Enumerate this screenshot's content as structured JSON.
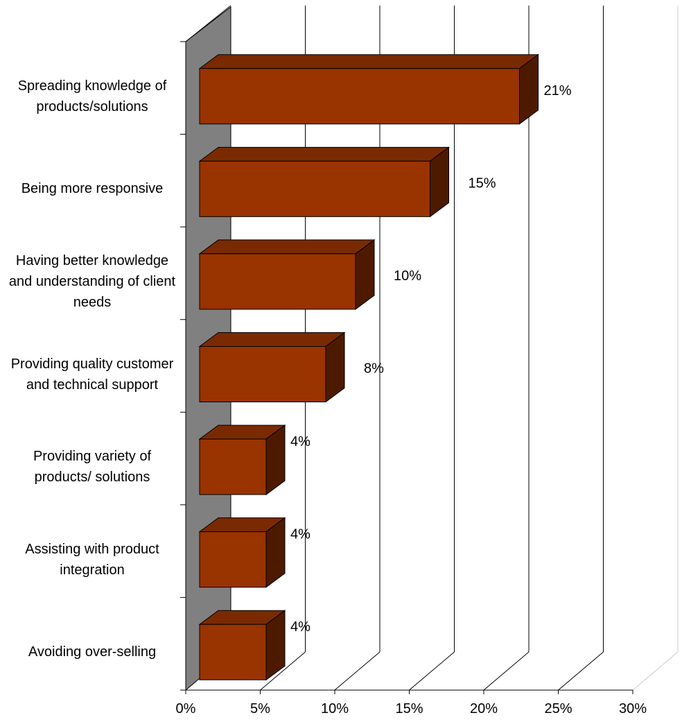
{
  "chart_data": {
    "type": "bar",
    "orientation": "horizontal",
    "three_d": true,
    "title": "",
    "xlabel": "",
    "ylabel": "",
    "categories": [
      "Spreading knowledge of products/solutions",
      "Being more responsive",
      "Having better knowledge and understanding of client needs",
      "Providing quality customer and technical support",
      "Providing variety of products/ solutions",
      "Assisting with product integration",
      "Avoiding over-selling"
    ],
    "values": [
      21,
      15,
      10,
      8,
      4,
      4,
      4
    ],
    "data_labels": [
      "21%",
      "15%",
      "10%",
      "8%",
      "4%",
      "4%",
      "4%"
    ],
    "xlim": [
      0,
      30
    ],
    "x_ticks": [
      0,
      5,
      10,
      15,
      20,
      25,
      30
    ],
    "x_tick_labels": [
      "0%",
      "5%",
      "10%",
      "15%",
      "20%",
      "25%",
      "30%"
    ],
    "grid": true,
    "legend": "none",
    "colors": {
      "bar_front": "#993300",
      "bar_top": "#7a2a00",
      "bar_side": "#4d1a00",
      "back_wall": "#808080",
      "gridline": "#000000"
    }
  }
}
